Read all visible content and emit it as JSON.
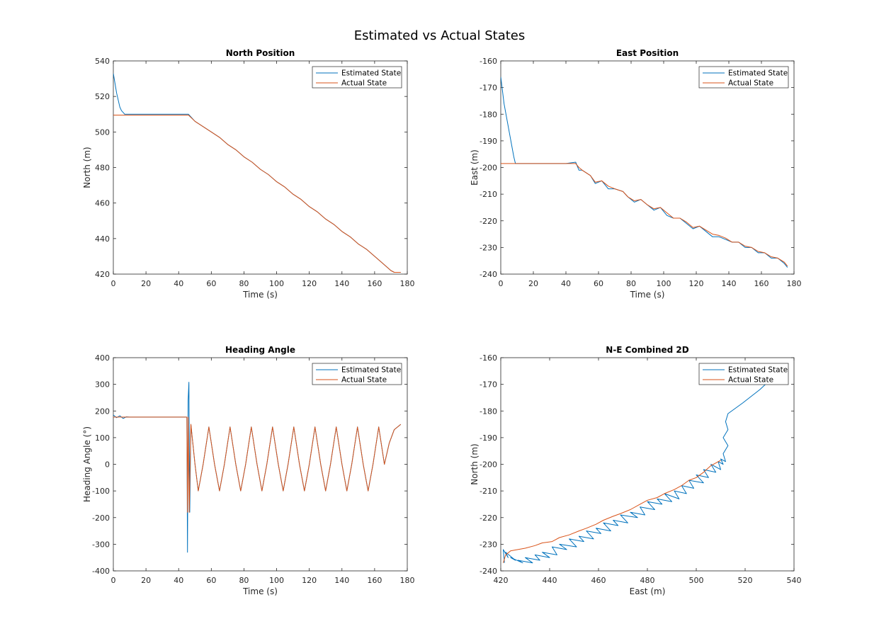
{
  "figure": {
    "title": "Estimated vs Actual States"
  },
  "colors": {
    "estimated": "#0072BD",
    "actual": "#D95319",
    "axis": "#262626"
  },
  "chart_data": [
    {
      "type": "line",
      "title": "North Position",
      "xlabel": "Time (s)",
      "ylabel": "North (m)",
      "xlim": [
        0,
        180
      ],
      "ylim": [
        420,
        540
      ],
      "xticks": [
        0,
        20,
        40,
        60,
        80,
        100,
        120,
        140,
        160,
        180
      ],
      "yticks": [
        420,
        440,
        460,
        480,
        500,
        520,
        540
      ],
      "legend": {
        "position": "top-right",
        "entries": [
          "Estimated State",
          "Actual State"
        ]
      },
      "series": [
        {
          "name": "Estimated State",
          "x": [
            0,
            2,
            4,
            5,
            6,
            7,
            8,
            10,
            20,
            30,
            40,
            46,
            50,
            55,
            60,
            65,
            70,
            75,
            80,
            85,
            90,
            95,
            100,
            105,
            110,
            115,
            120,
            125,
            130,
            135,
            140,
            145,
            150,
            155,
            160,
            165,
            170,
            172,
            176
          ],
          "y": [
            533,
            522,
            514,
            512,
            511,
            510,
            510,
            510,
            510,
            510,
            510,
            510,
            506,
            503,
            500,
            497,
            493,
            490,
            486,
            483,
            479,
            476,
            472,
            469,
            465,
            462,
            458,
            455,
            451,
            448,
            444,
            441,
            437,
            434,
            430,
            426,
            422,
            421,
            421
          ]
        },
        {
          "name": "Actual State",
          "x": [
            0,
            46,
            50,
            55,
            60,
            65,
            70,
            75,
            80,
            85,
            90,
            95,
            100,
            105,
            110,
            115,
            120,
            125,
            130,
            135,
            140,
            145,
            150,
            155,
            160,
            165,
            170,
            172,
            176
          ],
          "y": [
            509.5,
            509.5,
            506,
            503,
            500,
            497,
            493,
            490,
            486,
            483,
            479,
            476,
            472,
            469,
            465,
            462,
            458,
            455,
            451,
            448,
            444,
            441,
            437,
            434,
            430,
            426,
            422,
            421,
            421
          ]
        }
      ]
    },
    {
      "type": "line",
      "title": "East Position",
      "xlabel": "Time (s)",
      "ylabel": "East (m)",
      "xlim": [
        0,
        180
      ],
      "ylim": [
        -240,
        -160
      ],
      "xticks": [
        0,
        20,
        40,
        60,
        80,
        100,
        120,
        140,
        160,
        180
      ],
      "yticks": [
        -240,
        -230,
        -220,
        -210,
        -200,
        -190,
        -180,
        -170,
        -160
      ],
      "legend": {
        "position": "top-right",
        "entries": [
          "Estimated State",
          "Actual State"
        ]
      },
      "series": [
        {
          "name": "Estimated State",
          "x": [
            0,
            2,
            5,
            8,
            9,
            20,
            30,
            40,
            46,
            48,
            50,
            55,
            58,
            62,
            66,
            70,
            75,
            78,
            82,
            86,
            90,
            94,
            98,
            102,
            106,
            110,
            114,
            118,
            122,
            126,
            130,
            134,
            138,
            142,
            146,
            150,
            154,
            158,
            162,
            166,
            170,
            174,
            176
          ],
          "y": [
            -166,
            -176,
            -186,
            -196,
            -198.5,
            -198.5,
            -198.5,
            -198.5,
            -198,
            -201,
            -201,
            -203,
            -206,
            -205,
            -208,
            -208,
            -209,
            -211,
            -213,
            -212,
            -214,
            -216,
            -215,
            -218,
            -219,
            -219,
            -221,
            -223,
            -222,
            -224,
            -226,
            -226,
            -227,
            -228,
            -228,
            -230,
            -230,
            -232,
            -232,
            -234,
            -234,
            -236,
            -237.5
          ]
        },
        {
          "name": "Actual State",
          "x": [
            0,
            46,
            48,
            50,
            55,
            58,
            62,
            66,
            70,
            75,
            78,
            82,
            86,
            90,
            94,
            98,
            102,
            106,
            110,
            114,
            118,
            122,
            126,
            130,
            134,
            138,
            142,
            146,
            150,
            154,
            158,
            162,
            166,
            170,
            174,
            176
          ],
          "y": [
            -198.5,
            -198.5,
            -200,
            -201,
            -203,
            -205.5,
            -205,
            -207,
            -208,
            -209,
            -211,
            -212.5,
            -212,
            -214,
            -215.5,
            -215,
            -217,
            -219,
            -219,
            -220.5,
            -222.5,
            -222,
            -223.5,
            -225,
            -225.5,
            -226.5,
            -228,
            -228,
            -229.5,
            -230,
            -231.5,
            -232,
            -233.5,
            -234,
            -235.5,
            -237
          ]
        }
      ]
    },
    {
      "type": "line",
      "title": "Heading Angle",
      "xlabel": "Time (s)",
      "ylabel": "Heading Angle (°)",
      "xlim": [
        0,
        180
      ],
      "ylim": [
        -400,
        400
      ],
      "xticks": [
        0,
        20,
        40,
        60,
        80,
        100,
        120,
        140,
        160,
        180
      ],
      "yticks": [
        -400,
        -300,
        -200,
        -100,
        0,
        100,
        200,
        300,
        400
      ],
      "legend": {
        "position": "top-right",
        "entries": [
          "Estimated State",
          "Actual State"
        ]
      },
      "series": [
        {
          "name": "Estimated State",
          "x": [
            0,
            2,
            4,
            6,
            8,
            10,
            20,
            30,
            40,
            45,
            45.4,
            45.8,
            46.3,
            46.8,
            47.5,
            48.5,
            50,
            52,
            55,
            58.5,
            62,
            65,
            68,
            71.5,
            75,
            78,
            81,
            84.5,
            88,
            91,
            94,
            97.5,
            101,
            104,
            107,
            110.5,
            114,
            117,
            120,
            123.5,
            127,
            130,
            133,
            136.5,
            140,
            143,
            146,
            149.5,
            153,
            156,
            159,
            162.5,
            166,
            169,
            172,
            176
          ],
          "y": [
            185,
            175,
            182,
            172,
            178,
            177,
            177,
            177,
            177,
            177,
            -330,
            240,
            308,
            -180,
            150,
            90,
            0,
            -100,
            0,
            140,
            0,
            -100,
            0,
            140,
            0,
            -100,
            0,
            140,
            0,
            -100,
            0,
            140,
            0,
            -100,
            0,
            140,
            0,
            -100,
            0,
            140,
            0,
            -100,
            0,
            140,
            0,
            -100,
            0,
            140,
            0,
            -100,
            0,
            140,
            0,
            80,
            130,
            150
          ]
        },
        {
          "name": "Actual State",
          "x": [
            0,
            45,
            45.4,
            45.8,
            46.5,
            47.5,
            48.5,
            50,
            52,
            55,
            58.5,
            62,
            65,
            68,
            71.5,
            75,
            78,
            81,
            84.5,
            88,
            91,
            94,
            97.5,
            101,
            104,
            107,
            110.5,
            114,
            117,
            120,
            123.5,
            127,
            130,
            133,
            136.5,
            140,
            143,
            146,
            149.5,
            153,
            156,
            159,
            162.5,
            166,
            169,
            172,
            176
          ],
          "y": [
            177,
            177,
            -180,
            177,
            -180,
            150,
            90,
            0,
            -100,
            0,
            140,
            0,
            -100,
            0,
            140,
            0,
            -100,
            0,
            140,
            0,
            -100,
            0,
            140,
            0,
            -100,
            0,
            140,
            0,
            -100,
            0,
            140,
            0,
            -100,
            0,
            140,
            0,
            -100,
            0,
            140,
            0,
            -100,
            0,
            140,
            0,
            80,
            130,
            150
          ]
        }
      ]
    },
    {
      "type": "line",
      "title": "N-E Combined 2D",
      "xlabel": "East (m)",
      "ylabel": "North (m)",
      "xlim": [
        420,
        540
      ],
      "ylim": [
        -240,
        -160
      ],
      "xticks": [
        420,
        440,
        460,
        480,
        500,
        520,
        540
      ],
      "yticks": [
        -240,
        -230,
        -220,
        -210,
        -200,
        -190,
        -180,
        -170,
        -160
      ],
      "legend": {
        "position": "top-right",
        "entries": [
          "Estimated State",
          "Actual State"
        ]
      },
      "series": [
        {
          "name": "Estimated State",
          "x": [
            533,
            526,
            519,
            513,
            512,
            513,
            511,
            513,
            511,
            512,
            510,
            511,
            509,
            510,
            506,
            508,
            503,
            505,
            500,
            503,
            497,
            499,
            494,
            496,
            491,
            493,
            487,
            490,
            484,
            486,
            480,
            483,
            477,
            479,
            473,
            476,
            469,
            472,
            466,
            468,
            462,
            465,
            459,
            461,
            455,
            458,
            452,
            454,
            448,
            451,
            444,
            447,
            441,
            443,
            437,
            440,
            434,
            436,
            430,
            433,
            427,
            429,
            424,
            426,
            422,
            423,
            421,
            421.5
          ],
          "y": [
            -166,
            -172,
            -177,
            -181,
            -184,
            -187,
            -190,
            -193,
            -196,
            -199,
            -198,
            -200,
            -199,
            -202,
            -200,
            -203,
            -202,
            -205,
            -204,
            -207,
            -206,
            -209,
            -208,
            -211,
            -210,
            -213,
            -211,
            -214,
            -213,
            -215,
            -214,
            -217,
            -216,
            -219,
            -218,
            -220,
            -219,
            -222,
            -221,
            -223,
            -222,
            -225,
            -224,
            -226,
            -225,
            -228,
            -227,
            -229,
            -228,
            -231,
            -230,
            -232,
            -231,
            -234,
            -233,
            -235,
            -234,
            -236,
            -235,
            -237,
            -236,
            -237,
            -235,
            -236,
            -233,
            -235,
            -232,
            -237
          ]
        },
        {
          "name": "Actual State",
          "x": [
            510,
            506,
            503,
            500,
            497,
            494,
            491,
            487,
            484,
            480,
            477,
            473,
            469,
            466,
            462,
            459,
            455,
            452,
            448,
            444,
            441,
            437,
            434,
            430,
            427,
            424,
            422,
            421
          ],
          "y": [
            -198.5,
            -200.5,
            -203,
            -205,
            -206,
            -208,
            -209.5,
            -211,
            -212.5,
            -213.5,
            -215,
            -217,
            -218.5,
            -219.5,
            -221,
            -222.5,
            -224,
            -225,
            -226.5,
            -227.5,
            -229,
            -229.5,
            -230.5,
            -231.5,
            -232,
            -232.5,
            -234,
            -237
          ]
        }
      ]
    }
  ]
}
